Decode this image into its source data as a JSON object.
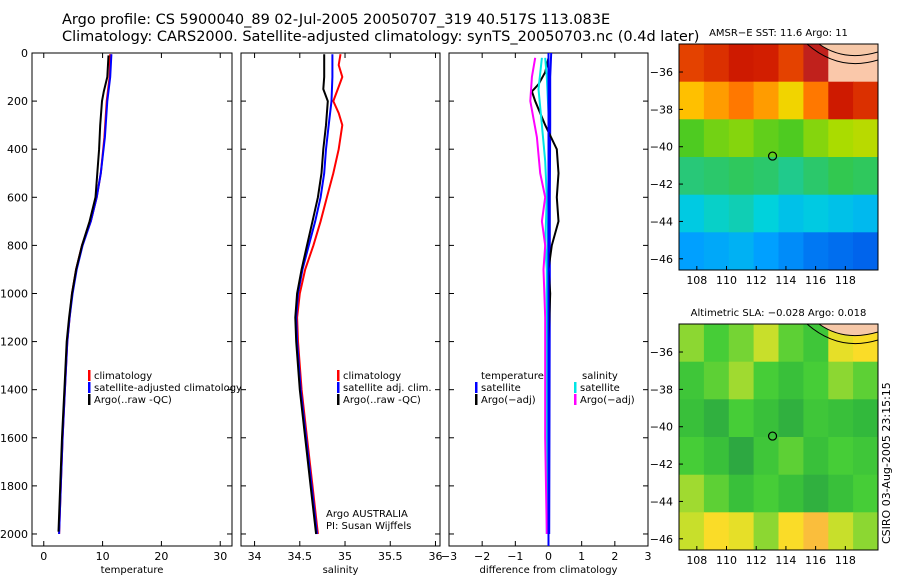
{
  "title_line1": "Argo profile: CS 5900040_89 02-Jul-2005 20050707_319 40.517S 113.083E",
  "title_line2": "Climatology: CARS2000. Satellite-adjusted climatology: synTS_20050703.nc (0.4d later)",
  "stamp": "CSIRO 03-Aug-2005 23:15:15",
  "colors": {
    "climatology": "#ff0000",
    "satellite": "#0000ff",
    "argo": "#000000",
    "cyan": "#00e5e5",
    "magenta": "#ff00ff"
  },
  "chart_data": [
    {
      "type": "line",
      "name": "temperature",
      "xlabel": "temperature",
      "xlim": [
        -2,
        32
      ],
      "ylim": [
        0,
        2050
      ],
      "xticks": [
        0,
        10,
        20,
        30
      ],
      "xtick_labels": [
        "0",
        "10",
        "20",
        "30"
      ],
      "yticks": [
        0,
        200,
        400,
        600,
        800,
        1000,
        1200,
        1400,
        1600,
        1800,
        2000
      ],
      "ytick_labels": [
        "0",
        "200",
        "400",
        "600",
        "800",
        "1000",
        "1200",
        "1400",
        "1600",
        "1800",
        "2000"
      ],
      "legend": [
        "climatology",
        "satellite-adjusted climatology",
        "Argo(..raw -QC)"
      ],
      "series": [
        {
          "name": "climatology",
          "color": "#ff0000",
          "points": [
            [
              11.3,
              5
            ],
            [
              11.2,
              100
            ],
            [
              10.7,
              200
            ],
            [
              10.3,
              350
            ],
            [
              9.7,
              500
            ],
            [
              9.0,
              600
            ],
            [
              8.0,
              700
            ],
            [
              6.5,
              800
            ],
            [
              5.5,
              900
            ],
            [
              4.8,
              1000
            ],
            [
              4.4,
              1100
            ],
            [
              4.0,
              1200
            ],
            [
              3.6,
              1400
            ],
            [
              3.2,
              1600
            ],
            [
              2.9,
              1800
            ],
            [
              2.6,
              2000
            ]
          ]
        },
        {
          "name": "satellite",
          "color": "#0000ff",
          "points": [
            [
              11.5,
              5
            ],
            [
              11.3,
              100
            ],
            [
              10.8,
              200
            ],
            [
              10.4,
              350
            ],
            [
              9.7,
              500
            ],
            [
              9.0,
              600
            ],
            [
              8.0,
              700
            ],
            [
              6.6,
              800
            ],
            [
              5.6,
              900
            ],
            [
              4.9,
              1000
            ],
            [
              4.4,
              1100
            ],
            [
              4.0,
              1200
            ],
            [
              3.6,
              1400
            ],
            [
              3.2,
              1600
            ],
            [
              2.9,
              1800
            ],
            [
              2.6,
              2000
            ]
          ]
        },
        {
          "name": "argo",
          "color": "#000000",
          "points": [
            [
              11.0,
              10
            ],
            [
              10.8,
              100
            ],
            [
              10.2,
              160
            ],
            [
              9.9,
              200
            ],
            [
              9.6,
              300
            ],
            [
              9.4,
              400
            ],
            [
              9.1,
              500
            ],
            [
              8.8,
              600
            ],
            [
              7.8,
              700
            ],
            [
              6.5,
              800
            ],
            [
              5.5,
              900
            ],
            [
              4.8,
              1000
            ],
            [
              4.3,
              1100
            ],
            [
              3.9,
              1200
            ],
            [
              3.5,
              1400
            ],
            [
              3.1,
              1600
            ],
            [
              2.8,
              1800
            ],
            [
              2.5,
              1990
            ]
          ]
        }
      ]
    },
    {
      "type": "line",
      "name": "salinity",
      "xlabel": "salinity",
      "xlim": [
        33.85,
        36.05
      ],
      "ylim": [
        0,
        2050
      ],
      "xticks": [
        34,
        34.5,
        35,
        35.5,
        36
      ],
      "xtick_labels": [
        "34",
        "34.5",
        "35",
        "35.5",
        "36"
      ],
      "legend": [
        "climatology",
        "satellite adj. clim.",
        "Argo(..raw -QC)"
      ],
      "annotations": [
        "Argo AUSTRALIA",
        "PI: Susan Wijffels"
      ],
      "series": [
        {
          "name": "climatology",
          "color": "#ff0000",
          "points": [
            [
              34.95,
              5
            ],
            [
              34.93,
              50
            ],
            [
              34.97,
              100
            ],
            [
              34.92,
              150
            ],
            [
              34.87,
              200
            ],
            [
              34.93,
              250
            ],
            [
              34.97,
              300
            ],
            [
              34.93,
              400
            ],
            [
              34.87,
              500
            ],
            [
              34.8,
              600
            ],
            [
              34.73,
              700
            ],
            [
              34.65,
              800
            ],
            [
              34.56,
              900
            ],
            [
              34.5,
              1000
            ],
            [
              34.47,
              1100
            ],
            [
              34.48,
              1200
            ],
            [
              34.52,
              1400
            ],
            [
              34.58,
              1600
            ],
            [
              34.64,
              1800
            ],
            [
              34.7,
              2000
            ]
          ]
        },
        {
          "name": "satellite",
          "color": "#0000ff",
          "points": [
            [
              34.86,
              5
            ],
            [
              34.86,
              100
            ],
            [
              34.85,
              200
            ],
            [
              34.82,
              300
            ],
            [
              34.79,
              400
            ],
            [
              34.77,
              500
            ],
            [
              34.73,
              600
            ],
            [
              34.67,
              700
            ],
            [
              34.6,
              800
            ],
            [
              34.53,
              900
            ],
            [
              34.48,
              1000
            ],
            [
              34.46,
              1100
            ],
            [
              34.47,
              1200
            ],
            [
              34.51,
              1400
            ],
            [
              34.57,
              1600
            ],
            [
              34.63,
              1800
            ],
            [
              34.69,
              2000
            ]
          ]
        },
        {
          "name": "argo",
          "color": "#000000",
          "points": [
            [
              34.77,
              5
            ],
            [
              34.77,
              100
            ],
            [
              34.76,
              150
            ],
            [
              34.81,
              200
            ],
            [
              34.79,
              300
            ],
            [
              34.76,
              400
            ],
            [
              34.74,
              500
            ],
            [
              34.7,
              600
            ],
            [
              34.64,
              700
            ],
            [
              34.58,
              800
            ],
            [
              34.52,
              900
            ],
            [
              34.47,
              1000
            ],
            [
              34.45,
              1100
            ],
            [
              34.46,
              1200
            ],
            [
              34.5,
              1400
            ],
            [
              34.56,
              1600
            ],
            [
              34.62,
              1800
            ],
            [
              34.68,
              2000
            ]
          ]
        }
      ]
    },
    {
      "type": "line",
      "name": "difference",
      "xlabel": "difference from climatology",
      "xlim": [
        -3,
        3
      ],
      "ylim": [
        0,
        2050
      ],
      "xticks": [
        -3,
        -2,
        -1,
        0,
        1,
        2,
        3
      ],
      "xtick_labels": [
        "−3",
        "−2",
        "−1",
        "0",
        "1",
        "2",
        "3"
      ],
      "legend_temperature": [
        "temperature",
        "satellite",
        "Argo(−adj)"
      ],
      "legend_salinity": [
        "salinity",
        "satellite",
        "Argo(−adj)"
      ],
      "series": [
        {
          "name": "temperature satellite",
          "color": "#0000ff",
          "points": [
            [
              0.08,
              0
            ],
            [
              0.05,
              100
            ],
            [
              0.05,
              300
            ],
            [
              0.04,
              600
            ],
            [
              0.04,
              1000
            ],
            [
              0.03,
              1500
            ],
            [
              0.02,
              2000
            ]
          ]
        },
        {
          "name": "temperature Argo(-adj)",
          "color": "#000000",
          "points": [
            [
              0.0,
              20
            ],
            [
              -0.1,
              80
            ],
            [
              -0.3,
              130
            ],
            [
              -0.5,
              160
            ],
            [
              -0.4,
              200
            ],
            [
              -0.1,
              300
            ],
            [
              0.25,
              400
            ],
            [
              0.3,
              500
            ],
            [
              0.25,
              600
            ],
            [
              0.3,
              700
            ],
            [
              0.1,
              800
            ],
            [
              0.0,
              900
            ],
            [
              0.05,
              1000
            ],
            [
              0.0,
              1200
            ],
            [
              0.0,
              1500
            ],
            [
              0.0,
              2000
            ]
          ]
        },
        {
          "name": "salinity satellite",
          "color": "#00e5e5",
          "points": [
            [
              -0.2,
              20
            ],
            [
              -0.3,
              150
            ],
            [
              -0.2,
              300
            ],
            [
              -0.1,
              450
            ],
            [
              -0.05,
              600
            ],
            [
              -0.1,
              800
            ],
            [
              -0.05,
              900
            ],
            [
              -0.05,
              1000
            ],
            [
              -0.05,
              1200
            ],
            [
              -0.05,
              1500
            ],
            [
              -0.05,
              2000
            ]
          ]
        },
        {
          "name": "salinity Argo(-adj)",
          "color": "#ff00ff",
          "points": [
            [
              -0.4,
              20
            ],
            [
              -0.5,
              100
            ],
            [
              -0.55,
              200
            ],
            [
              -0.35,
              350
            ],
            [
              -0.25,
              500
            ],
            [
              -0.1,
              600
            ],
            [
              -0.2,
              700
            ],
            [
              -0.1,
              800
            ],
            [
              -0.15,
              900
            ],
            [
              -0.1,
              1100
            ],
            [
              -0.1,
              1300
            ],
            [
              -0.1,
              1600
            ],
            [
              -0.05,
              2000
            ]
          ]
        },
        {
          "name": "salinity Argo cyan trace",
          "color": "#00e5e5",
          "points": [
            [
              -0.1,
              20
            ],
            [
              -0.05,
              100
            ],
            [
              0.0,
              250
            ],
            [
              0.0,
              600
            ],
            [
              -0.05,
              1000
            ],
            [
              0.0,
              1500
            ],
            [
              0.0,
              2000
            ]
          ]
        }
      ]
    },
    {
      "type": "heatmap",
      "name": "sst_map",
      "title": "AMSR−E SST: 11.6 Argo: 11",
      "xlim": [
        106.8,
        120.2
      ],
      "ylim": [
        -46.6,
        -34.5
      ],
      "xticks": [
        108,
        110,
        112,
        114,
        116,
        118
      ],
      "xtick_labels": [
        "108",
        "110",
        "112",
        "114",
        "116",
        "118"
      ],
      "yticks": [
        -36,
        -38,
        -40,
        -42,
        -44,
        -46
      ],
      "ytick_labels": [
        "−36",
        "−38",
        "−40",
        "−42",
        "−44",
        "−46"
      ],
      "marker": [
        113.1,
        -40.5
      ],
      "grid_rows": 6,
      "grid_cols": 8,
      "values": [
        [
          13.5,
          13.6,
          13.8,
          13.7,
          13.5,
          14.5,
          15,
          15
        ],
        [
          12.8,
          13.0,
          13.2,
          13.0,
          12.6,
          13.2,
          13.8,
          13.6
        ],
        [
          11.6,
          11.8,
          11.9,
          11.7,
          11.6,
          11.9,
          12.1,
          12.2
        ],
        [
          10.9,
          11.0,
          11.1,
          11.0,
          10.8,
          11.0,
          11.2,
          11.1
        ],
        [
          10.3,
          10.5,
          10.6,
          10.4,
          10.2,
          10.3,
          10.2,
          10.1
        ],
        [
          9.8,
          9.9,
          10.0,
          9.8,
          9.6,
          9.4,
          9.3,
          9.2
        ]
      ]
    },
    {
      "type": "heatmap",
      "name": "sla_map",
      "title": "Altimetric SLA: −0.028 Argo: 0.018",
      "xlim": [
        106.8,
        120.2
      ],
      "ylim": [
        -46.6,
        -34.5
      ],
      "xticks": [
        108,
        110,
        112,
        114,
        116,
        118
      ],
      "xtick_labels": [
        "108",
        "110",
        "112",
        "114",
        "116",
        "118"
      ],
      "yticks": [
        -36,
        -38,
        -40,
        -42,
        -44,
        -46
      ],
      "ytick_labels": [
        "−36",
        "−38",
        "−40",
        "−42",
        "−44",
        "−46"
      ],
      "marker": [
        113.1,
        -40.5
      ],
      "grid_rows": 6,
      "grid_cols": 8,
      "values": [
        [
          0.05,
          0.02,
          0.04,
          0.08,
          0.03,
          0.01,
          0.1,
          0.12
        ],
        [
          0.01,
          0.03,
          0.06,
          0.02,
          0.0,
          0.02,
          0.05,
          0.03
        ],
        [
          0.0,
          -0.02,
          0.02,
          0.0,
          -0.02,
          0.01,
          0.0,
          -0.01
        ],
        [
          0.02,
          0.0,
          -0.03,
          0.01,
          0.03,
          0.0,
          0.02,
          0.01
        ],
        [
          0.06,
          0.03,
          0.0,
          0.02,
          0.0,
          -0.02,
          0.0,
          0.02
        ],
        [
          0.08,
          0.12,
          0.1,
          0.05,
          0.12,
          0.15,
          0.08,
          0.05
        ]
      ]
    }
  ]
}
